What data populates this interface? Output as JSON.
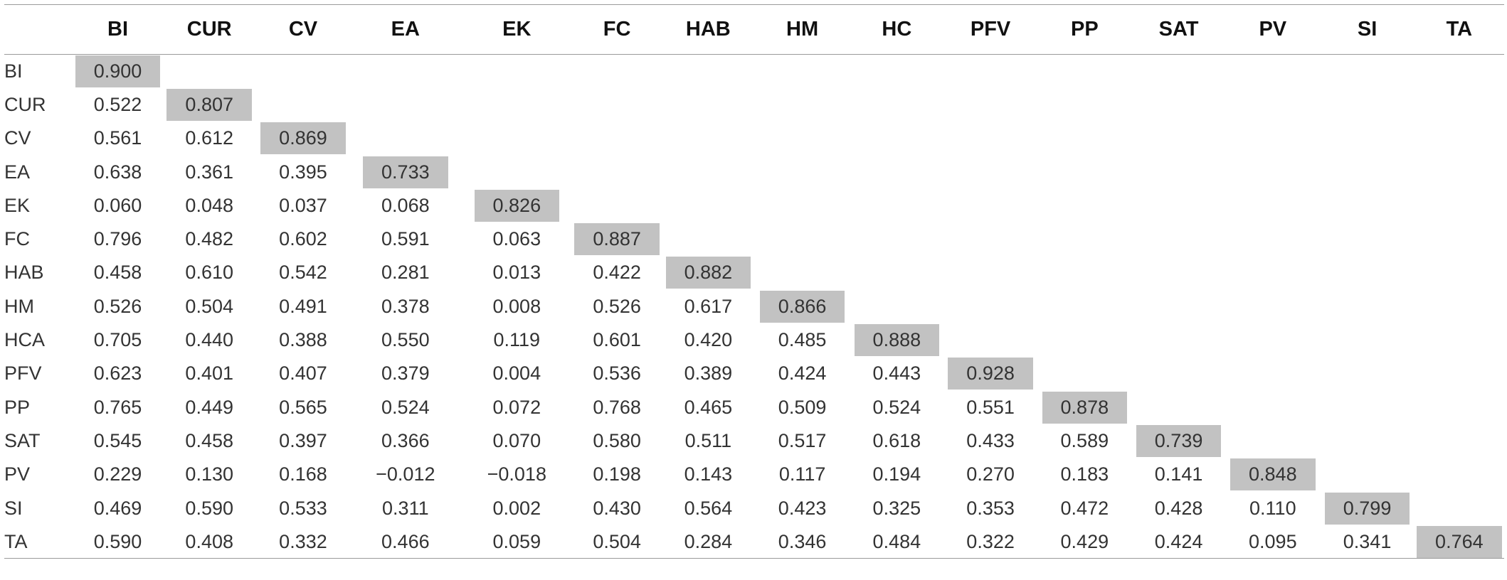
{
  "columns": [
    "",
    "BI",
    "CUR",
    "CV",
    "EA",
    "EK",
    "FC",
    "HAB",
    "HM",
    "HC",
    "PFV",
    "PP",
    "SAT",
    "PV",
    "SI",
    "TA"
  ],
  "rows": [
    {
      "label": "BI",
      "values": [
        "0.900"
      ]
    },
    {
      "label": "CUR",
      "values": [
        "0.522",
        "0.807"
      ]
    },
    {
      "label": "CV",
      "values": [
        "0.561",
        "0.612",
        "0.869"
      ]
    },
    {
      "label": "EA",
      "values": [
        "0.638",
        "0.361",
        "0.395",
        "0.733"
      ]
    },
    {
      "label": "EK",
      "values": [
        "0.060",
        "0.048",
        "0.037",
        "0.068",
        "0.826"
      ]
    },
    {
      "label": "FC",
      "values": [
        "0.796",
        "0.482",
        "0.602",
        "0.591",
        "0.063",
        "0.887"
      ]
    },
    {
      "label": "HAB",
      "values": [
        "0.458",
        "0.610",
        "0.542",
        "0.281",
        "0.013",
        "0.422",
        "0.882"
      ]
    },
    {
      "label": "HM",
      "values": [
        "0.526",
        "0.504",
        "0.491",
        "0.378",
        "0.008",
        "0.526",
        "0.617",
        "0.866"
      ]
    },
    {
      "label": "HCA",
      "values": [
        "0.705",
        "0.440",
        "0.388",
        "0.550",
        "0.119",
        "0.601",
        "0.420",
        "0.485",
        "0.888"
      ]
    },
    {
      "label": "PFV",
      "values": [
        "0.623",
        "0.401",
        "0.407",
        "0.379",
        "0.004",
        "0.536",
        "0.389",
        "0.424",
        "0.443",
        "0.928"
      ]
    },
    {
      "label": "PP",
      "values": [
        "0.765",
        "0.449",
        "0.565",
        "0.524",
        "0.072",
        "0.768",
        "0.465",
        "0.509",
        "0.524",
        "0.551",
        "0.878"
      ]
    },
    {
      "label": "SAT",
      "values": [
        "0.545",
        "0.458",
        "0.397",
        "0.366",
        "0.070",
        "0.580",
        "0.511",
        "0.517",
        "0.618",
        "0.433",
        "0.589",
        "0.739"
      ]
    },
    {
      "label": "PV",
      "values": [
        "0.229",
        "0.130",
        "0.168",
        "−0.012",
        "−0.018",
        "0.198",
        "0.143",
        "0.117",
        "0.194",
        "0.270",
        "0.183",
        "0.141",
        "0.848"
      ]
    },
    {
      "label": "SI",
      "values": [
        "0.469",
        "0.590",
        "0.533",
        "0.311",
        "0.002",
        "0.430",
        "0.564",
        "0.423",
        "0.325",
        "0.353",
        "0.472",
        "0.428",
        "0.110",
        "0.799"
      ]
    },
    {
      "label": "TA",
      "values": [
        "0.590",
        "0.408",
        "0.332",
        "0.466",
        "0.059",
        "0.504",
        "0.284",
        "0.346",
        "0.484",
        "0.322",
        "0.429",
        "0.424",
        "0.095",
        "0.341",
        "0.764"
      ]
    }
  ],
  "colors": {
    "diagonal_fill": "#c2c2c2",
    "rule": "#9a9a9a",
    "text": "#333333"
  }
}
